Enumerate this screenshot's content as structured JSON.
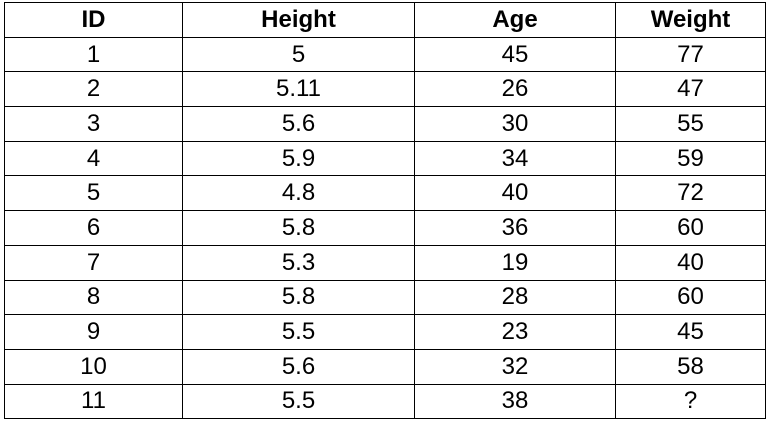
{
  "table": {
    "headers": [
      "ID",
      "Height",
      "Age",
      "Weight"
    ],
    "rows": [
      [
        "1",
        "5",
        "45",
        "77"
      ],
      [
        "2",
        "5.11",
        "26",
        "47"
      ],
      [
        "3",
        "5.6",
        "30",
        "55"
      ],
      [
        "4",
        "5.9",
        "34",
        "59"
      ],
      [
        "5",
        "4.8",
        "40",
        "72"
      ],
      [
        "6",
        "5.8",
        "36",
        "60"
      ],
      [
        "7",
        "5.3",
        "19",
        "40"
      ],
      [
        "8",
        "5.8",
        "28",
        "60"
      ],
      [
        "9",
        "5.5",
        "23",
        "45"
      ],
      [
        "10",
        "5.6",
        "32",
        "58"
      ],
      [
        "11",
        "5.5",
        "38",
        "?"
      ]
    ]
  }
}
